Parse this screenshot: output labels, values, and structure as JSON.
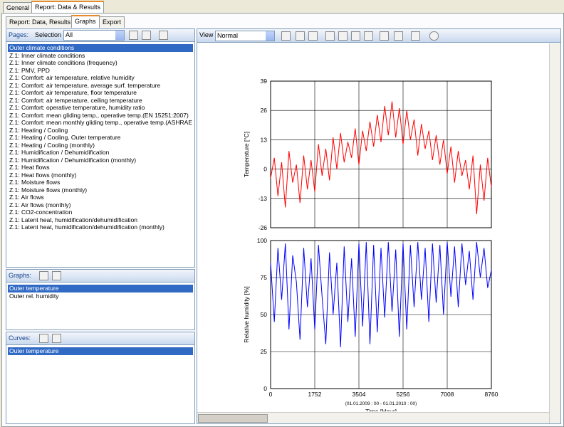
{
  "tabs": [
    "General",
    "Report: Data & Results"
  ],
  "subtabs": [
    "Report: Data, Results",
    "Graphs",
    "Export"
  ],
  "pages_panel": {
    "label": "Pages:",
    "selection_label": "Selection",
    "selection_value": "All",
    "items": [
      "Outer climate conditions",
      "Z.1: Inner climate conditions",
      "Z.1: Inner climate conditions (frequency)",
      "Z.1: PMV, PPD",
      "Z.1: Comfort: air temperature, relative humidity",
      "Z.1: Comfort: air temperature, average surf. temperature",
      "Z.1: Comfort: air temperature, floor temperature",
      "Z.1: Comfort: air temperature, ceiling temperature",
      "Z.1: Comfort: operative temperature, humidity ratio",
      "Z.1: Comfort: mean gliding temp., operative temp.(EN 15251:2007)",
      "Z.1: Comfort: mean monthly gliding temp., operative temp.(ASHRAE",
      "Z.1: Heating / Cooling",
      "Z.1: Heating / Cooling, Outer temperature",
      "Z.1: Heating / Cooling (monthly)",
      "Z.1: Humidification / Dehumidification",
      "Z.1: Humidification / Dehumidification (monthly)",
      "Z.1: Heat flows",
      "Z.1: Heat flows (monthly)",
      "Z.1: Moisture flows",
      "Z.1: Moisture flows (monthly)",
      "Z.1: Air flows",
      "Z.1: Air flows (monthly)",
      "Z.1: CO2-concentration",
      "Z.1: Latent heat, humidification/dehumidification",
      "Z.1: Latent heat, humidification/dehumidification (monthly)"
    ]
  },
  "graphs_panel": {
    "label": "Graphs:",
    "items": [
      "Outer temperature",
      "Outer rel. humidity"
    ]
  },
  "curves_panel": {
    "label": "Curves:",
    "items": [
      "Outer temperature"
    ]
  },
  "view": {
    "label": "View",
    "value": "Normal"
  },
  "chart_data": [
    {
      "type": "line",
      "y_label": "Temperature [°C]",
      "xlim": [
        0,
        8760
      ],
      "xticks": [
        0,
        1752,
        3504,
        5256,
        7008,
        8760
      ],
      "ylim": [
        -26,
        39
      ],
      "yticks": [
        -26,
        -13,
        0,
        13,
        26,
        39
      ],
      "grid": true,
      "x": [
        0,
        146,
        292,
        438,
        584,
        730,
        876,
        1022,
        1168,
        1314,
        1460,
        1606,
        1752,
        1898,
        2044,
        2190,
        2336,
        2482,
        2628,
        2774,
        2920,
        3066,
        3212,
        3358,
        3504,
        3650,
        3796,
        3942,
        4088,
        4234,
        4380,
        4526,
        4672,
        4818,
        4964,
        5110,
        5256,
        5402,
        5548,
        5694,
        5840,
        5986,
        6132,
        6278,
        6424,
        6570,
        6716,
        6862,
        7008,
        7154,
        7300,
        7446,
        7592,
        7738,
        7884,
        8030,
        8176,
        8322,
        8468,
        8614,
        8760
      ],
      "series": [
        {
          "color": "#ff0000",
          "values": [
            -4,
            5,
            -12,
            3,
            -17,
            8,
            -6,
            2,
            -15,
            6,
            -9,
            4,
            -10,
            11,
            -3,
            9,
            -5,
            14,
            0,
            16,
            3,
            12,
            5,
            18,
            2,
            17,
            8,
            21,
            10,
            24,
            12,
            28,
            15,
            30,
            14,
            27,
            11,
            26,
            13,
            22,
            6,
            20,
            9,
            17,
            4,
            15,
            2,
            13,
            -2,
            10,
            -6,
            8,
            -3,
            4,
            -9,
            6,
            -20,
            2,
            -14,
            5,
            -8
          ]
        }
      ]
    },
    {
      "type": "line",
      "y_label": "Relative humidity [%]",
      "x_note": "(01.01.2009 : 00 - 01.01.2010 : 00)",
      "x_label": "Time  [Hour]",
      "xlim": [
        0,
        8760
      ],
      "xticks": [
        0,
        1752,
        3504,
        5256,
        7008,
        8760
      ],
      "ylim": [
        0,
        100
      ],
      "yticks": [
        0,
        25,
        50,
        75,
        100
      ],
      "grid": true,
      "x": [
        0,
        146,
        292,
        438,
        584,
        730,
        876,
        1022,
        1168,
        1314,
        1460,
        1606,
        1752,
        1898,
        2044,
        2190,
        2336,
        2482,
        2628,
        2774,
        2920,
        3066,
        3212,
        3358,
        3504,
        3650,
        3796,
        3942,
        4088,
        4234,
        4380,
        4526,
        4672,
        4818,
        4964,
        5110,
        5256,
        5402,
        5548,
        5694,
        5840,
        5986,
        6132,
        6278,
        6424,
        6570,
        6716,
        6862,
        7008,
        7154,
        7300,
        7446,
        7592,
        7738,
        7884,
        8030,
        8176,
        8322,
        8468,
        8614,
        8760
      ],
      "series": [
        {
          "color": "#0000ff",
          "values": [
            85,
            45,
            95,
            60,
            98,
            40,
            90,
            72,
            33,
            95,
            55,
            88,
            40,
            97,
            62,
            30,
            92,
            50,
            85,
            28,
            96,
            45,
            88,
            35,
            98,
            42,
            99,
            30,
            97,
            38,
            95,
            48,
            99,
            52,
            94,
            35,
            98,
            40,
            97,
            55,
            99,
            60,
            95,
            45,
            98,
            58,
            97,
            50,
            99,
            62,
            96,
            55,
            98,
            70,
            93,
            60,
            99,
            75,
            95,
            68,
            80
          ]
        }
      ]
    }
  ]
}
